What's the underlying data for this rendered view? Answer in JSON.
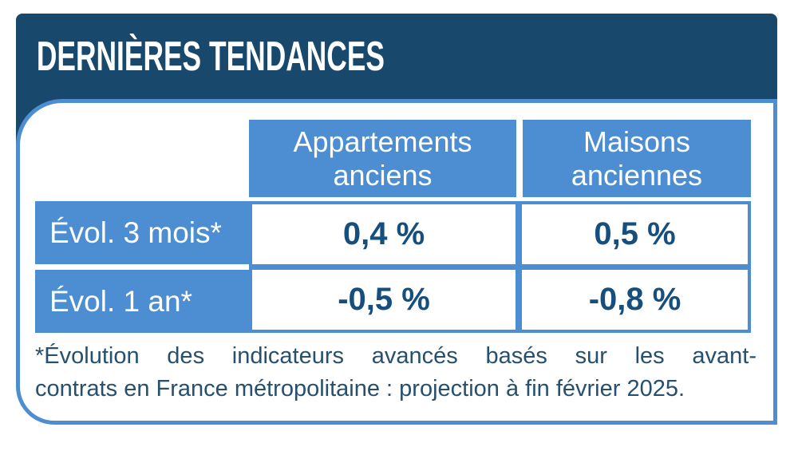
{
  "title": "DERNIÈRES TENDANCES",
  "table": {
    "column_headers": [
      "Appartements anciens",
      "Maisons anciennes"
    ],
    "rows": [
      {
        "label": "Évol. 3 mois*",
        "values": [
          "0,4 %",
          "0,5 %"
        ]
      },
      {
        "label": "Évol. 1 an*",
        "values": [
          "-0,5 %",
          "-0,8 %"
        ]
      }
    ]
  },
  "footnote": {
    "line1": "*Évolution des indicateurs avancés basés sur les avant-",
    "line2": "contrats en France métropolitaine : projection à fin février 2025."
  },
  "colors": {
    "navy": "#18486C",
    "blue": "#4C8ED1",
    "value_text": "#164F7D",
    "footnote_text": "#26506E"
  },
  "chart_data": {
    "type": "table",
    "title": "DERNIÈRES TENDANCES",
    "columns": [
      "Appartements anciens",
      "Maisons anciennes"
    ],
    "rows": [
      {
        "label": "Évol. 3 mois*",
        "values_pct": [
          0.4,
          0.5
        ]
      },
      {
        "label": "Évol. 1 an*",
        "values_pct": [
          -0.5,
          -0.8
        ]
      }
    ],
    "unit": "%",
    "note": "*Évolution des indicateurs avancés basés sur les avant-contrats en France métropolitaine : projection à fin février 2025."
  }
}
